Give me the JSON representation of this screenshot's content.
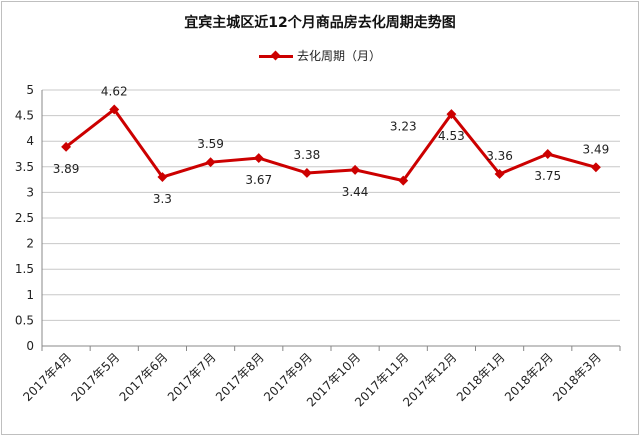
{
  "chart_data": {
    "type": "line",
    "title": "宜宾主城区近12个月商品房去化周期走势图",
    "legend": "去化周期（月）",
    "xlabel": "",
    "ylabel": "",
    "ylim": [
      0,
      5
    ],
    "yticks": [
      0,
      0.5,
      1,
      1.5,
      2,
      2.5,
      3,
      3.5,
      4,
      4.5,
      5
    ],
    "ytick_labels": [
      "0",
      "0.5",
      "1",
      "1.5",
      "2",
      "2.5",
      "3",
      "3.5",
      "4",
      "4.5",
      "5"
    ],
    "grid": true,
    "categories": [
      "2017年4月",
      "2017年5月",
      "2017年6月",
      "2017年7月",
      "2017年8月",
      "2017年9月",
      "2017年10月",
      "2017年11月",
      "2017年12月",
      "2018年1月",
      "2018年2月",
      "2018年3月"
    ],
    "series": [
      {
        "name": "去化周期（月）",
        "color": "#cc0000",
        "values": [
          3.89,
          4.62,
          3.3,
          3.59,
          3.67,
          3.38,
          3.44,
          3.23,
          4.53,
          3.36,
          3.75,
          3.49
        ]
      }
    ],
    "data_labels": [
      "3.89",
      "4.62",
      "3.3",
      "3.59",
      "3.67",
      "3.38",
      "3.44",
      "3.23",
      "4.53",
      "3.36",
      "3.75",
      "3.49"
    ]
  }
}
